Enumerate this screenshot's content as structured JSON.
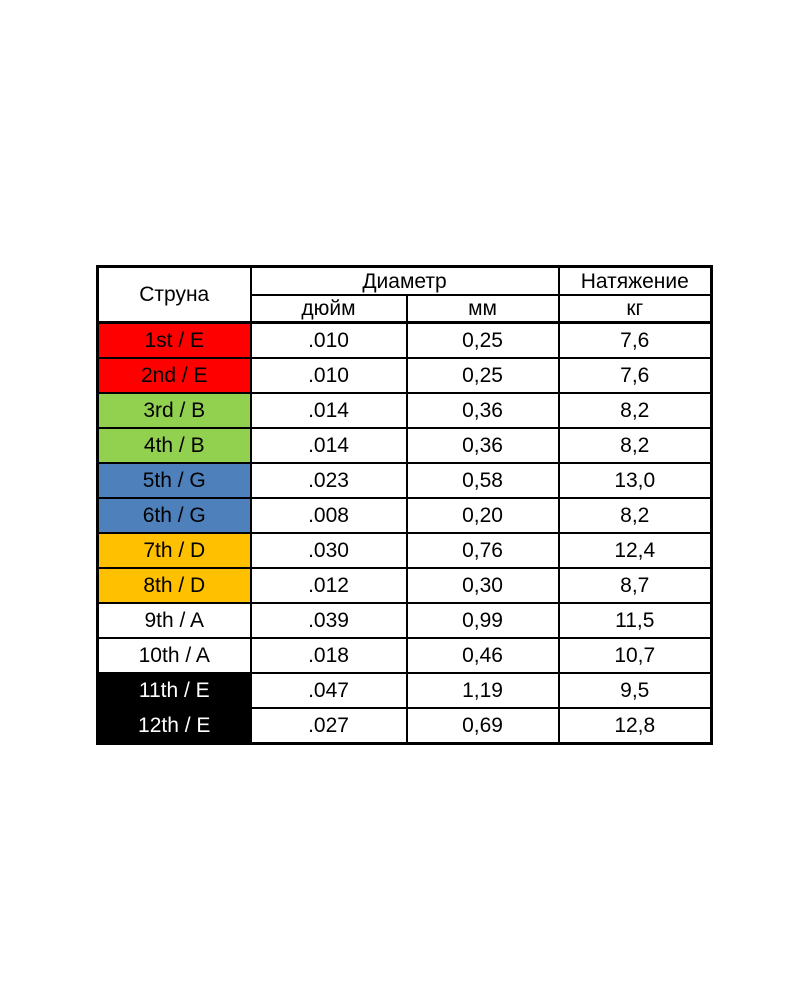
{
  "table": {
    "headers": {
      "string": "Струна",
      "diameter": "Диаметр",
      "tension": "Натяжение",
      "inch": "дюйм",
      "mm": "мм",
      "kg": "кг"
    },
    "colors": {
      "red": "#FF0000",
      "green": "#92D050",
      "blue": "#4E80BC",
      "orange": "#FFC000",
      "black": "#000000",
      "white": "#FFFFFF"
    },
    "border_color": "#000000",
    "rows": [
      {
        "string": "1st / E",
        "inch": ".010",
        "mm": "0,25",
        "kg": "7,6",
        "color": "red",
        "text_color": "black"
      },
      {
        "string": "2nd / E",
        "inch": ".010",
        "mm": "0,25",
        "kg": "7,6",
        "color": "red",
        "text_color": "black"
      },
      {
        "string": "3rd / B",
        "inch": ".014",
        "mm": "0,36",
        "kg": "8,2",
        "color": "green",
        "text_color": "black"
      },
      {
        "string": "4th / B",
        "inch": ".014",
        "mm": "0,36",
        "kg": "8,2",
        "color": "green",
        "text_color": "black"
      },
      {
        "string": "5th / G",
        "inch": ".023",
        "mm": "0,58",
        "kg": "13,0",
        "color": "blue",
        "text_color": "black"
      },
      {
        "string": "6th / G",
        "inch": ".008",
        "mm": "0,20",
        "kg": "8,2",
        "color": "blue",
        "text_color": "black"
      },
      {
        "string": "7th / D",
        "inch": ".030",
        "mm": "0,76",
        "kg": "12,4",
        "color": "orange",
        "text_color": "black"
      },
      {
        "string": "8th / D",
        "inch": ".012",
        "mm": "0,30",
        "kg": "8,7",
        "color": "orange",
        "text_color": "black"
      },
      {
        "string": "9th / A",
        "inch": ".039",
        "mm": "0,99",
        "kg": "11,5",
        "color": "white",
        "text_color": "black"
      },
      {
        "string": "10th / A",
        "inch": ".018",
        "mm": "0,46",
        "kg": "10,7",
        "color": "white",
        "text_color": "black"
      },
      {
        "string": "11th / E",
        "inch": ".047",
        "mm": "1,19",
        "kg": "9,5",
        "color": "black",
        "text_color": "white"
      },
      {
        "string": "12th / E",
        "inch": ".027",
        "mm": "0,69",
        "kg": "12,8",
        "color": "black",
        "text_color": "white"
      }
    ]
  }
}
